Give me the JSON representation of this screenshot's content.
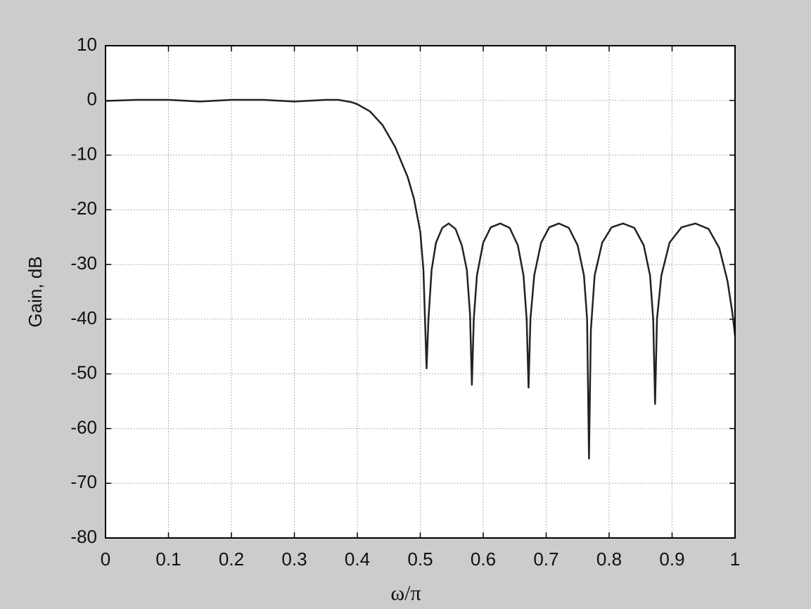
{
  "chart_data": {
    "type": "line",
    "xlabel": "ω/π",
    "ylabel": "Gain, dB",
    "xlim": [
      0,
      1
    ],
    "ylim": [
      -80,
      10
    ],
    "xticks": [
      0,
      0.1,
      0.2,
      0.3,
      0.4,
      0.5,
      0.6,
      0.7,
      0.8,
      0.9,
      1
    ],
    "yticks": [
      10,
      0,
      -10,
      -20,
      -30,
      -40,
      -50,
      -60,
      -70,
      -80
    ],
    "grid": true,
    "series": [
      {
        "color": "#222222",
        "x": [
          0,
          0.05,
          0.1,
          0.15,
          0.2,
          0.25,
          0.3,
          0.35,
          0.37,
          0.39,
          0.4,
          0.42,
          0.44,
          0.46,
          0.48,
          0.49,
          0.5,
          0.505,
          0.51,
          0.513,
          0.518,
          0.525,
          0.535,
          0.545,
          0.556,
          0.566,
          0.574,
          0.579,
          0.582,
          0.585,
          0.59,
          0.6,
          0.612,
          0.627,
          0.642,
          0.655,
          0.664,
          0.669,
          0.672,
          0.675,
          0.681,
          0.692,
          0.705,
          0.72,
          0.736,
          0.75,
          0.76,
          0.765,
          0.768,
          0.771,
          0.777,
          0.789,
          0.804,
          0.822,
          0.84,
          0.855,
          0.865,
          0.87,
          0.873,
          0.876,
          0.883,
          0.896,
          0.915,
          0.937,
          0.958,
          0.975,
          0.988,
          0.996,
          1.0
        ],
        "values": [
          -0.1,
          0.1,
          0.1,
          -0.2,
          0.1,
          0.1,
          -0.2,
          0.1,
          0.1,
          -0.3,
          -0.7,
          -2,
          -4.5,
          -8.5,
          -14,
          -18,
          -24,
          -31,
          -49,
          -40,
          -31,
          -26,
          -23.3,
          -22.5,
          -23.5,
          -26.5,
          -31,
          -39,
          -52,
          -40,
          -32,
          -26,
          -23.2,
          -22.5,
          -23.3,
          -26.5,
          -32,
          -40,
          -52.5,
          -40,
          -32,
          -26,
          -23.2,
          -22.5,
          -23.3,
          -26.5,
          -32,
          -40,
          -65.5,
          -42,
          -32,
          -26,
          -23.2,
          -22.5,
          -23.3,
          -26.5,
          -32,
          -40,
          -55.5,
          -40,
          -32,
          -26,
          -23.2,
          -22.5,
          -23.5,
          -27,
          -33,
          -39,
          -43
        ]
      }
    ]
  }
}
